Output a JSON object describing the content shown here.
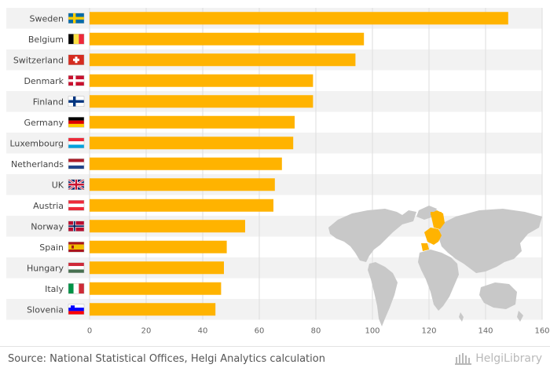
{
  "chart_data": {
    "type": "bar",
    "orientation": "horizontal",
    "categories": [
      "Sweden",
      "Belgium",
      "Switzerland",
      "Denmark",
      "Finland",
      "Germany",
      "Luxembourg",
      "Netherlands",
      "UK",
      "Austria",
      "Norway",
      "Spain",
      "Hungary",
      "Italy",
      "Slovenia"
    ],
    "values": [
      148,
      97,
      94,
      79,
      79,
      72.5,
      72,
      68,
      65.5,
      65,
      55,
      48.5,
      47.5,
      46.5,
      44.5
    ],
    "xlim": [
      0,
      160
    ],
    "xticks": [
      0,
      20,
      40,
      60,
      80,
      100,
      120,
      140,
      160
    ],
    "grid": true,
    "bar_color": "#FFB300",
    "stripe_color": "#F2F2F2",
    "flags": [
      "flag-sweden",
      "flag-belgium",
      "flag-switzerland",
      "flag-denmark",
      "flag-finland",
      "flag-germany",
      "flag-luxembourg",
      "flag-netherlands",
      "flag-uk",
      "flag-austria",
      "flag-norway",
      "flag-spain",
      "flag-hungary",
      "flag-italy",
      "flag-slovenia"
    ]
  },
  "footer": {
    "source": "Source: National Statistical Offices, Helgi Analytics calculation",
    "brand": "HelgiLibrary"
  }
}
